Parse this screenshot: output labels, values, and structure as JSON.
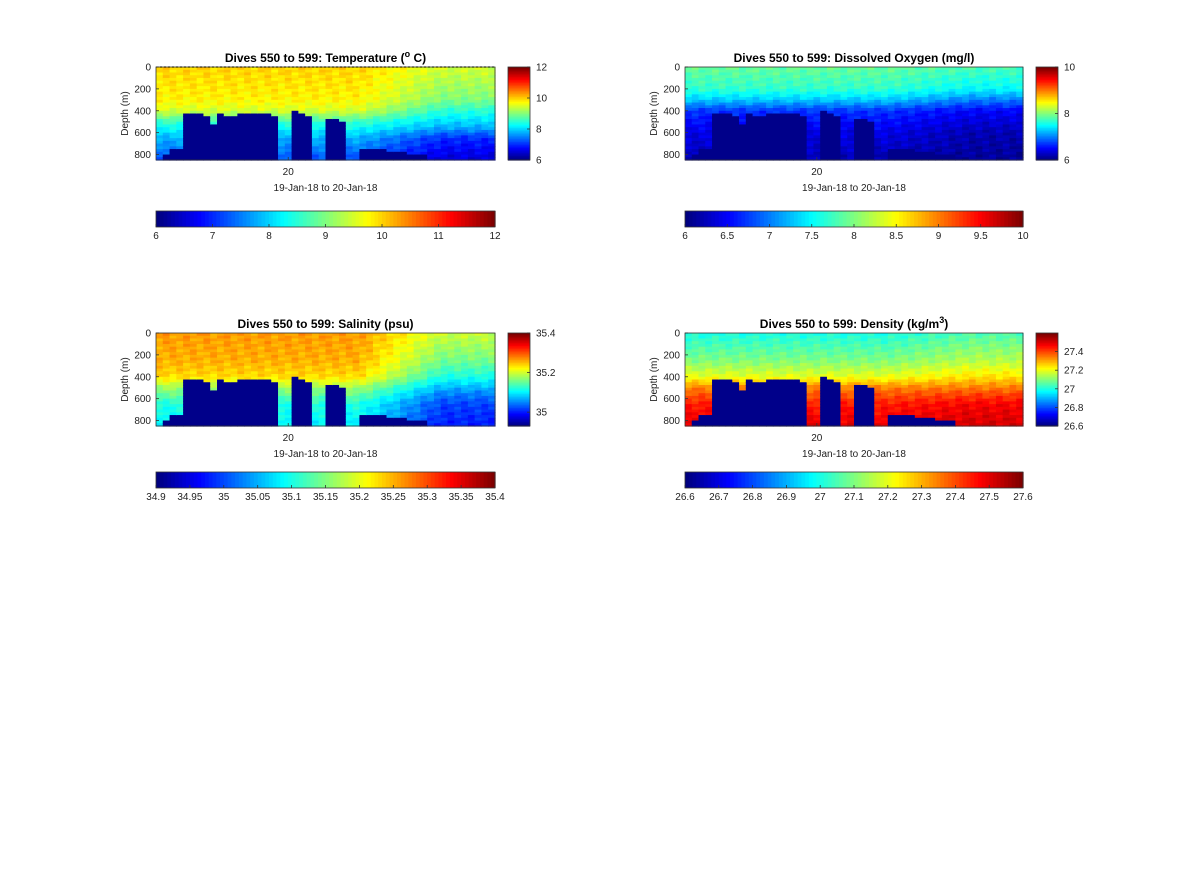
{
  "colors": {
    "jet": [
      "#00007f",
      "#0000ff",
      "#007fff",
      "#00ffff",
      "#7fff7f",
      "#ffff00",
      "#ff7f00",
      "#ff0000",
      "#7f0000"
    ],
    "seafloor": "#00008a"
  },
  "chart_data": [
    {
      "type": "heatmap",
      "title_parts": {
        "pre": "Dives 550 to 599: Temperature (",
        "sup": "o",
        "post": " C)"
      },
      "xlabel": "19-Jan-18 to 20-Jan-18",
      "ylabel": "Depth (m)",
      "x_tick_labels": [
        "20"
      ],
      "y_ticks": [
        0,
        200,
        400,
        600,
        800
      ],
      "ylim": [
        0,
        850
      ],
      "y_reversed": true,
      "colormap": "jet",
      "side_colorbar": {
        "range": [
          6,
          12
        ],
        "ticks": [
          "6",
          "8",
          "10",
          "12"
        ]
      },
      "bottom_colorbar": {
        "range": [
          6,
          12
        ],
        "ticks": [
          "6",
          "7",
          "8",
          "9",
          "10",
          "11",
          "12"
        ]
      },
      "profile": {
        "depth": [
          0,
          300,
          400,
          500,
          650,
          850
        ],
        "value": [
          10,
          9.8,
          9.5,
          8.6,
          7.8,
          7.2
        ]
      },
      "later_profile": {
        "depth": [
          0,
          300,
          400,
          550,
          650,
          850
        ],
        "value": [
          9.5,
          9.0,
          8.5,
          7.8,
          7.0,
          6.5
        ]
      }
    },
    {
      "type": "heatmap",
      "title_parts": {
        "pre": "Dives 550 to 599: Dissolved Oxygen (mg/l)",
        "sup": "",
        "post": ""
      },
      "xlabel": "19-Jan-18 to 20-Jan-18",
      "ylabel": "Depth (m)",
      "x_tick_labels": [
        "20"
      ],
      "y_ticks": [
        0,
        200,
        400,
        600,
        800
      ],
      "ylim": [
        0,
        850
      ],
      "y_reversed": true,
      "colormap": "jet",
      "side_colorbar": {
        "range": [
          6,
          10
        ],
        "ticks": [
          "6",
          "8",
          "10"
        ]
      },
      "bottom_colorbar": {
        "range": [
          6,
          10
        ],
        "ticks": [
          "6",
          "6.5",
          "7",
          "7.5",
          "8",
          "8.5",
          "9",
          "9.5",
          "10"
        ]
      },
      "profile": {
        "depth": [
          0,
          200,
          300,
          400,
          600,
          850
        ],
        "value": [
          7.9,
          7.7,
          7.3,
          6.7,
          6.4,
          6.2
        ]
      },
      "later_profile": {
        "depth": [
          0,
          200,
          300,
          400,
          600,
          850
        ],
        "value": [
          7.8,
          7.5,
          7.0,
          6.5,
          6.2,
          6.1
        ]
      }
    },
    {
      "type": "heatmap",
      "title_parts": {
        "pre": "Dives 550 to 599: Salinity (psu)",
        "sup": "",
        "post": ""
      },
      "xlabel": "19-Jan-18 to 20-Jan-18",
      "ylabel": "Depth (m)",
      "x_tick_labels": [
        "20"
      ],
      "y_ticks": [
        0,
        200,
        400,
        600,
        800
      ],
      "ylim": [
        0,
        850
      ],
      "y_reversed": true,
      "colormap": "jet",
      "side_colorbar": {
        "range": [
          34.93,
          35.4
        ],
        "ticks": [
          "35",
          "35.2",
          "35.4"
        ]
      },
      "bottom_colorbar": {
        "range": [
          34.9,
          35.4
        ],
        "ticks": [
          "34.9",
          "34.95",
          "35",
          "35.05",
          "35.1",
          "35.15",
          "35.2",
          "35.25",
          "35.3",
          "35.35",
          "35.4"
        ]
      },
      "profile": {
        "depth": [
          0,
          250,
          400,
          500,
          650,
          850
        ],
        "value": [
          35.27,
          35.26,
          35.24,
          35.18,
          35.12,
          35.1
        ]
      },
      "later_profile": {
        "depth": [
          0,
          250,
          400,
          550,
          650,
          850
        ],
        "value": [
          35.2,
          35.16,
          35.12,
          35.05,
          35.02,
          35.0
        ]
      }
    },
    {
      "type": "heatmap",
      "title_parts": {
        "pre": "Dives 550 to 599: Density (kg/m",
        "sup": "3",
        "post": ")"
      },
      "xlabel": "19-Jan-18 to 20-Jan-18",
      "ylabel": "Depth (m)",
      "x_tick_labels": [
        "20"
      ],
      "y_ticks": [
        0,
        200,
        400,
        600,
        800
      ],
      "ylim": [
        0,
        850
      ],
      "y_reversed": true,
      "colormap": "jet",
      "side_colorbar": {
        "range": [
          26.6,
          27.6
        ],
        "ticks": [
          "26.6",
          "26.8",
          "27",
          "27.2",
          "27.4"
        ]
      },
      "bottom_colorbar": {
        "range": [
          26.6,
          27.6
        ],
        "ticks": [
          "26.6",
          "26.7",
          "26.8",
          "26.9",
          "27",
          "27.1",
          "27.2",
          "27.3",
          "27.4",
          "27.5",
          "27.6"
        ]
      },
      "profile": {
        "depth": [
          0,
          250,
          400,
          500,
          650,
          850
        ],
        "value": [
          27.0,
          27.1,
          27.2,
          27.35,
          27.45,
          27.5
        ]
      },
      "later_profile": {
        "depth": [
          0,
          250,
          400,
          550,
          650,
          850
        ],
        "value": [
          27.05,
          27.15,
          27.25,
          27.4,
          27.48,
          27.52
        ]
      }
    }
  ]
}
